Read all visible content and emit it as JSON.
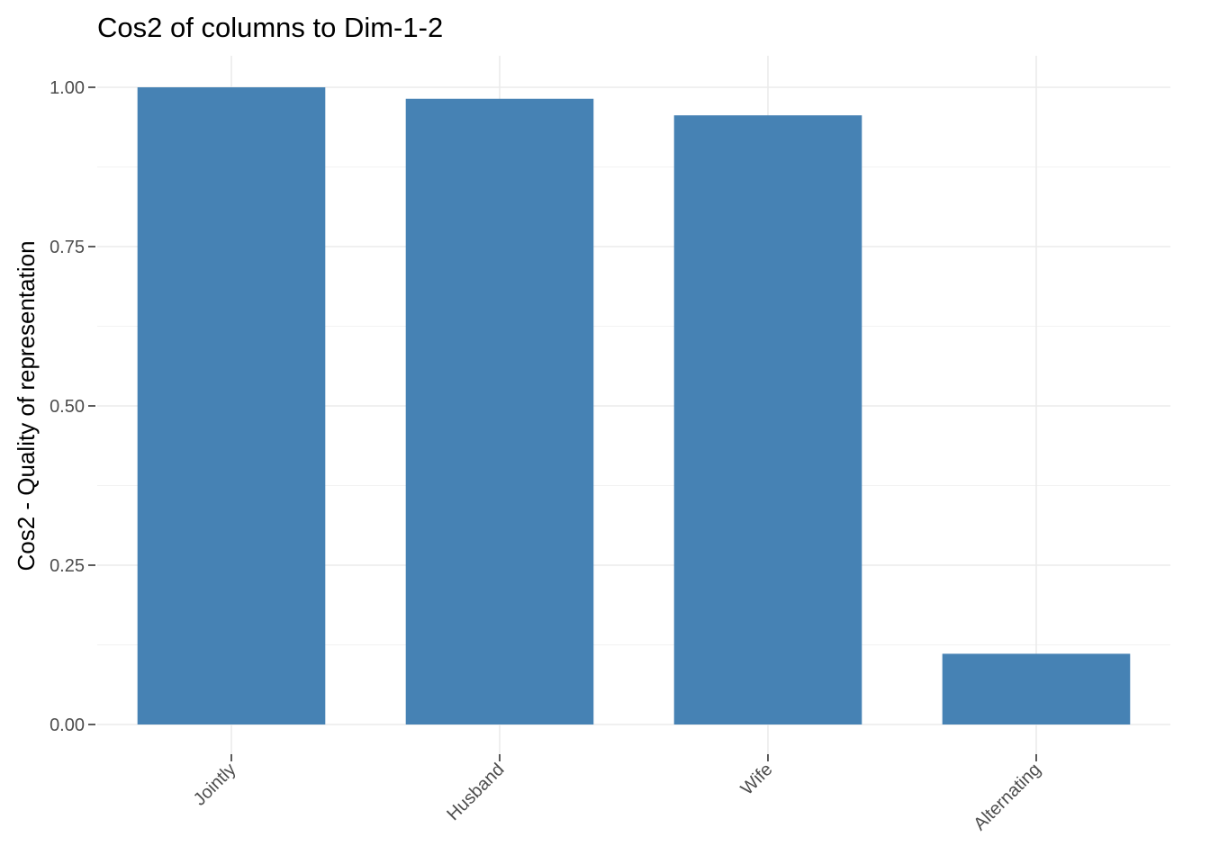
{
  "chart_data": {
    "type": "bar",
    "title": "Cos2 of columns to Dim-1-2",
    "xlabel": "",
    "ylabel": "Cos2 - Quality of representation",
    "categories": [
      "Jointly",
      "Husband",
      "Wife",
      "Alternating"
    ],
    "values": [
      1.0,
      0.982,
      0.956,
      0.111
    ],
    "ylim": [
      0,
      1.0
    ],
    "yticks": [
      0.0,
      0.25,
      0.5,
      0.75,
      1.0
    ],
    "ytick_labels": [
      "0.00",
      "0.25",
      "0.50",
      "0.75",
      "1.00"
    ],
    "grid": true,
    "legend": "none",
    "bar_color": "#4682B4",
    "x_tick_rotation_deg": 45
  }
}
